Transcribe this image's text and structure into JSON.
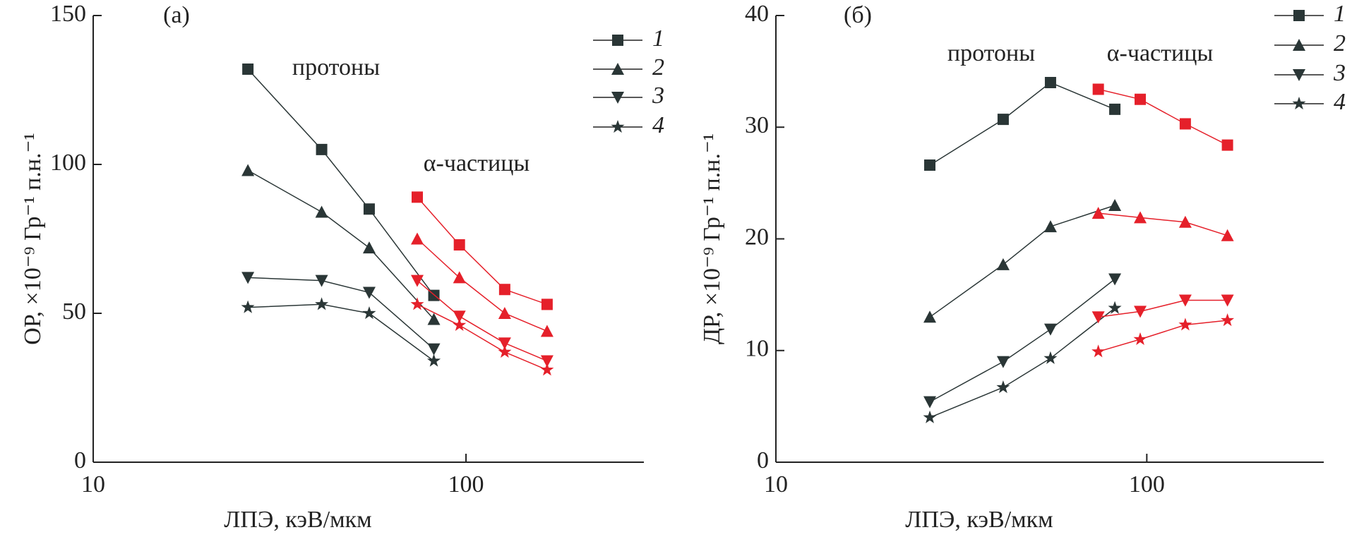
{
  "chart_data": [
    {
      "type": "line",
      "panel_label": "(a)",
      "xscale": "log",
      "x_label": "ЛПЭ, кэВ/мкм",
      "y_label": "ОР, ×10⁻⁹ Гр⁻¹ п.н.⁻¹",
      "xlim": [
        10,
        300
      ],
      "xticks": [
        10,
        100
      ],
      "ylim": [
        0,
        150
      ],
      "yticks": [
        0,
        50,
        100,
        150
      ],
      "legend": [
        {
          "name": "1",
          "marker": "square"
        },
        {
          "name": "2",
          "marker": "triangle-up"
        },
        {
          "name": "3",
          "marker": "triangle-down"
        },
        {
          "name": "4",
          "marker": "star"
        }
      ],
      "groups": [
        {
          "label": "протоны",
          "color": "#2a3636",
          "x": [
            26,
            41,
            55,
            82
          ],
          "series": [
            {
              "values": [
                132,
                105,
                85,
                56
              ]
            },
            {
              "values": [
                98,
                84,
                72,
                48
              ]
            },
            {
              "values": [
                62,
                61,
                57,
                38
              ]
            },
            {
              "values": [
                52,
                53,
                50,
                34
              ]
            }
          ]
        },
        {
          "label": "α-частицы",
          "color": "#e5202a",
          "x": [
            74,
            96,
            127,
            165
          ],
          "series": [
            {
              "values": [
                89,
                73,
                58,
                53
              ]
            },
            {
              "values": [
                75,
                62,
                50,
                44
              ]
            },
            {
              "values": [
                61,
                49,
                40,
                34
              ]
            },
            {
              "values": [
                53,
                46,
                37,
                31
              ]
            }
          ]
        }
      ]
    },
    {
      "type": "line",
      "panel_label": "(б)",
      "xscale": "log",
      "x_label": "ЛПЭ, кэВ/мкм",
      "y_label": "ДР, ×10⁻⁹ Гр⁻¹ п.н.⁻¹",
      "xlim": [
        10,
        300
      ],
      "xticks": [
        10,
        100
      ],
      "ylim": [
        0,
        40
      ],
      "yticks": [
        0,
        10,
        20,
        30,
        40
      ],
      "legend": [
        {
          "name": "1",
          "marker": "square"
        },
        {
          "name": "2",
          "marker": "triangle-up"
        },
        {
          "name": "3",
          "marker": "triangle-down"
        },
        {
          "name": "4",
          "marker": "star"
        }
      ],
      "groups": [
        {
          "label": "протоны",
          "color": "#2a3636",
          "x": [
            26,
            41,
            55,
            82
          ],
          "series": [
            {
              "values": [
                26.6,
                30.7,
                34,
                31.6
              ]
            },
            {
              "values": [
                13,
                17.7,
                21.1,
                23
              ]
            },
            {
              "values": [
                5.4,
                9,
                11.9,
                16.4
              ]
            },
            {
              "values": [
                4,
                6.7,
                9.3,
                13.8
              ]
            }
          ]
        },
        {
          "label": "α-частицы",
          "color": "#e5202a",
          "x": [
            74,
            96,
            127,
            165
          ],
          "series": [
            {
              "values": [
                33.4,
                32.5,
                30.3,
                28.4
              ]
            },
            {
              "values": [
                22.3,
                21.9,
                21.5,
                20.3
              ]
            },
            {
              "values": [
                13,
                13.5,
                14.5,
                14.5
              ]
            },
            {
              "values": [
                9.9,
                11,
                12.3,
                12.7
              ]
            }
          ]
        }
      ]
    }
  ]
}
